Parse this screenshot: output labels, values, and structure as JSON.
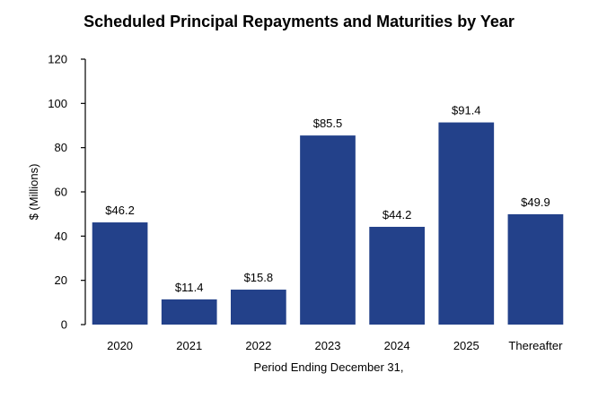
{
  "chart_data": {
    "type": "bar",
    "title": "Scheduled Principal Repayments and Maturities by Year",
    "xlabel": "Period Ending December 31,",
    "ylabel": "$ (Millions)",
    "categories": [
      "2020",
      "2021",
      "2022",
      "2023",
      "2024",
      "2025",
      "Thereafter"
    ],
    "values": [
      46.2,
      11.4,
      15.8,
      85.5,
      44.2,
      91.4,
      49.9
    ],
    "data_labels": [
      "$46.2",
      "$11.4",
      "$15.8",
      "$85.5",
      "$44.2",
      "$91.4",
      "$49.9"
    ],
    "ylim": [
      0,
      120
    ],
    "yticks": [
      0,
      20,
      40,
      60,
      80,
      100,
      120
    ],
    "grid": false,
    "legend": "none",
    "bar_color": "#23418A"
  }
}
